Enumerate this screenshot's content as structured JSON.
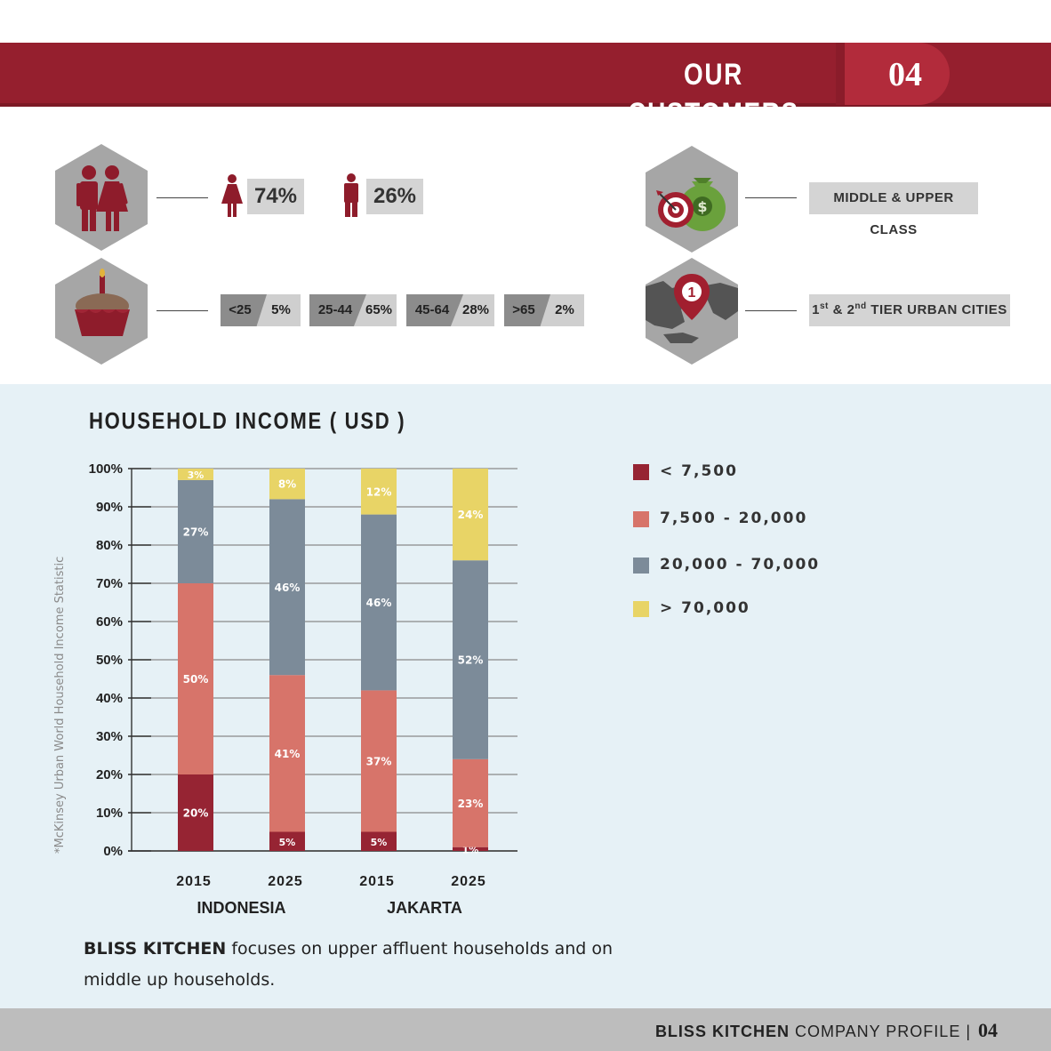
{
  "header": {
    "title": "OUR CUSTOMERS",
    "page_number": "04"
  },
  "gender": {
    "female_pct": "74%",
    "male_pct": "26%"
  },
  "age_groups": [
    {
      "range": "<25",
      "pct": "5%"
    },
    {
      "range": "25-44",
      "pct": "65%"
    },
    {
      "range": "45-64",
      "pct": "28%"
    },
    {
      "range": ">65",
      "pct": "2%"
    }
  ],
  "class": {
    "label": "MIDDLE & UPPER CLASS"
  },
  "cities": {
    "label_1": "1",
    "sup_1": "st",
    "amp": " & ",
    "label_2": "2",
    "sup_2": "nd",
    "label_rest": " TIER URBAN CITIES",
    "pin_number": "1"
  },
  "chart_title": "HOUSEHOLD INCOME ( USD )",
  "source_note": "*McKinsey Urban World Household Income Statistic",
  "chart_data": {
    "type": "bar",
    "stacked": true,
    "categories": [
      "2015",
      "2025",
      "2015",
      "2025"
    ],
    "groups": [
      {
        "label": "INDONESIA",
        "categories": [
          0,
          1
        ]
      },
      {
        "label": "JAKARTA",
        "categories": [
          2,
          3
        ]
      }
    ],
    "series": [
      {
        "name": "< 7,500",
        "color": "#962433",
        "values": [
          20,
          5,
          5,
          1
        ],
        "labels": [
          "20%",
          "5%",
          "5%",
          "1%"
        ]
      },
      {
        "name": "7,500 - 20,000",
        "color": "#d7746a",
        "values": [
          50,
          41,
          37,
          23
        ],
        "labels": [
          "50%",
          "41%",
          "37%",
          "23%"
        ]
      },
      {
        "name": "20,000 - 70,000",
        "color": "#7c8b99",
        "values": [
          27,
          46,
          46,
          52
        ],
        "labels": [
          "27%",
          "46%",
          "46%",
          "52%"
        ]
      },
      {
        "name": "> 70,000",
        "color": "#e8d466",
        "values": [
          3,
          8,
          12,
          24
        ],
        "labels": [
          "3%",
          "8%",
          "12%",
          "24%"
        ]
      }
    ],
    "yticks": [
      "0%",
      "10%",
      "20%",
      "30%",
      "40%",
      "50%",
      "60%",
      "70%",
      "80%",
      "90%",
      "100%"
    ],
    "ylim": [
      0,
      100
    ],
    "grid": true,
    "legend_position": "right"
  },
  "summary": {
    "brand": "BLISS KITCHEN",
    "text": " focuses on upper affluent households and on middle up households."
  },
  "footer": {
    "brand": "BLISS KITCHEN",
    "text": " COMPANY PROFILE | ",
    "page_number": "04"
  },
  "colors": {
    "brand_red": "#951f2e",
    "panel": "#e6f1f6",
    "footer": "#bdbdbd"
  }
}
